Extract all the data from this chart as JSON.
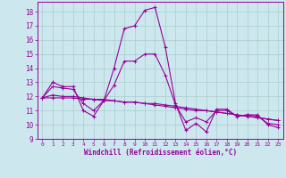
{
  "xlabel": "Windchill (Refroidissement éolien,°C)",
  "background_color": "#cce8ee",
  "line_color": "#990099",
  "grid_color": "#aacccc",
  "xlim": [
    -0.5,
    23.5
  ],
  "ylim": [
    9,
    18.7
  ],
  "yticks": [
    9,
    10,
    11,
    12,
    13,
    14,
    15,
    16,
    17,
    18
  ],
  "xticks": [
    0,
    1,
    2,
    3,
    4,
    5,
    6,
    7,
    8,
    9,
    10,
    11,
    12,
    13,
    14,
    15,
    16,
    17,
    18,
    19,
    20,
    21,
    22,
    23
  ],
  "hours": [
    0,
    1,
    2,
    3,
    4,
    5,
    6,
    7,
    8,
    9,
    10,
    11,
    12,
    13,
    14,
    15,
    16,
    17,
    18,
    19,
    20,
    21,
    22,
    23
  ],
  "windchill": [
    11.9,
    13.0,
    12.7,
    12.7,
    11.0,
    10.6,
    11.7,
    14.0,
    16.8,
    17.0,
    18.1,
    18.3,
    15.5,
    11.5,
    9.6,
    10.1,
    9.5,
    11.1,
    11.1,
    10.6,
    10.7,
    10.7,
    10.0,
    9.8
  ],
  "line2": [
    11.9,
    12.1,
    12.0,
    12.0,
    11.9,
    11.8,
    11.8,
    11.7,
    11.6,
    11.6,
    11.5,
    11.4,
    11.3,
    11.2,
    11.1,
    11.0,
    11.0,
    10.9,
    10.8,
    10.7,
    10.6,
    10.5,
    10.4,
    10.3
  ],
  "line3": [
    11.9,
    11.9,
    11.9,
    11.9,
    11.8,
    11.8,
    11.7,
    11.7,
    11.6,
    11.6,
    11.5,
    11.5,
    11.4,
    11.3,
    11.2,
    11.1,
    11.0,
    10.9,
    10.8,
    10.7,
    10.6,
    10.5,
    10.4,
    10.3
  ],
  "line4": [
    11.9,
    12.7,
    12.6,
    12.5,
    11.5,
    11.0,
    11.7,
    12.8,
    14.5,
    14.5,
    15.0,
    15.0,
    13.5,
    11.4,
    10.2,
    10.5,
    10.2,
    11.0,
    11.0,
    10.6,
    10.7,
    10.6,
    10.1,
    10.0
  ]
}
